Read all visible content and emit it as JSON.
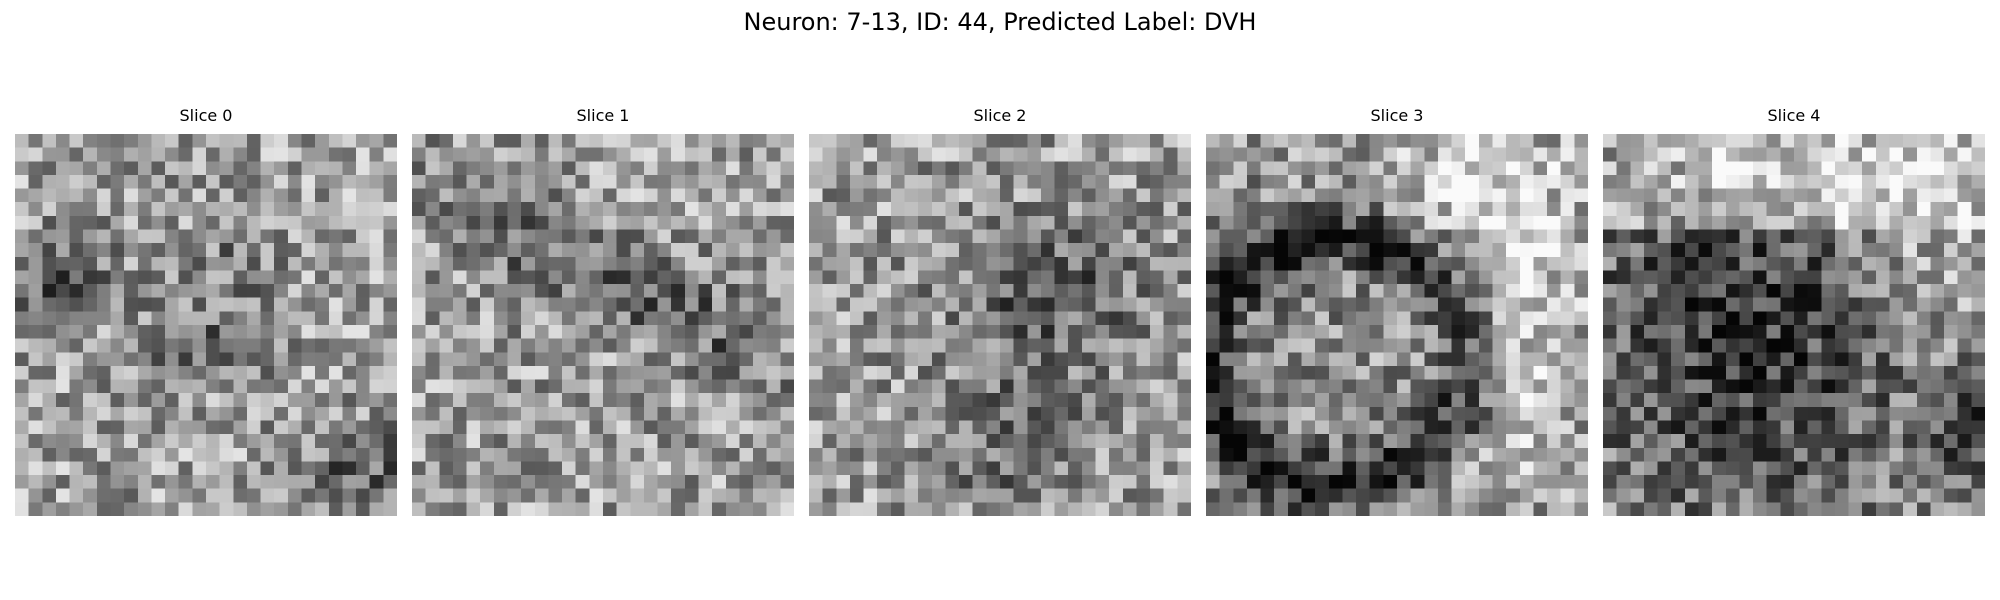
{
  "figure": {
    "suptitle": "Neuron: 7-13, ID: 44, Predicted Label: DVH",
    "grid_size": 28,
    "colormap": "gray",
    "panels": [
      {
        "title": "Slice 0",
        "pattern": "noise-dark-blobs"
      },
      {
        "title": "Slice 1",
        "pattern": "noise-diagonal-band"
      },
      {
        "title": "Slice 2",
        "pattern": "noise-dark-center"
      },
      {
        "title": "Slice 3",
        "pattern": "dark-ring-bright-right"
      },
      {
        "title": "Slice 4",
        "pattern": "dark-dome-bright-top"
      }
    ]
  }
}
